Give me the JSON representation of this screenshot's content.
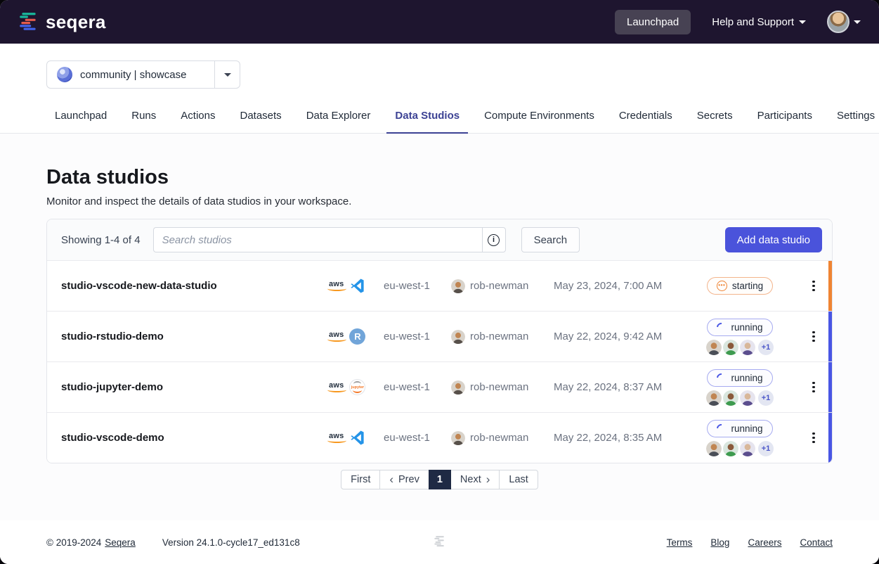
{
  "colors": {
    "accent": "#4a53db",
    "navbar_bg": "#1e152f",
    "status_starting": "#ef8433",
    "status_running": "#4956e4",
    "active_tab": "#3c4294",
    "active_page_bg": "#1f2a44"
  },
  "navbar": {
    "brand": "seqera",
    "launchpad_label": "Launchpad",
    "help_label": "Help and Support"
  },
  "workspace_selector": {
    "label": "community | showcase"
  },
  "tabs": [
    {
      "label": "Launchpad",
      "active": false
    },
    {
      "label": "Runs",
      "active": false
    },
    {
      "label": "Actions",
      "active": false
    },
    {
      "label": "Datasets",
      "active": false
    },
    {
      "label": "Data Explorer",
      "active": false
    },
    {
      "label": "Data Studios",
      "active": true
    },
    {
      "label": "Compute Environments",
      "active": false
    },
    {
      "label": "Credentials",
      "active": false
    },
    {
      "label": "Secrets",
      "active": false
    },
    {
      "label": "Participants",
      "active": false
    },
    {
      "label": "Settings",
      "active": false
    }
  ],
  "page": {
    "title": "Data studios",
    "subtitle": "Monitor and inspect the details of data studios in your workspace."
  },
  "toolbar": {
    "showing": "Showing 1-4 of 4",
    "search_placeholder": "Search studios",
    "search_button_label": "Search",
    "add_button_label": "Add data studio"
  },
  "table": {
    "rows": [
      {
        "name": "studio-vscode-new-data-studio",
        "app": "vscode",
        "region": "eu-west-1",
        "user": "rob-newman",
        "date": "May 23, 2024, 7:00 AM",
        "status": "starting",
        "members_extra": null
      },
      {
        "name": "studio-rstudio-demo",
        "app": "rstudio",
        "region": "eu-west-1",
        "user": "rob-newman",
        "date": "May 22, 2024, 9:42 AM",
        "status": "running",
        "members_extra": "+1"
      },
      {
        "name": "studio-jupyter-demo",
        "app": "jupyter",
        "region": "eu-west-1",
        "user": "rob-newman",
        "date": "May 22, 2024, 8:37 AM",
        "status": "running",
        "members_extra": "+1"
      },
      {
        "name": "studio-vscode-demo",
        "app": "vscode",
        "region": "eu-west-1",
        "user": "rob-newman",
        "date": "May 22, 2024, 8:35 AM",
        "status": "running",
        "members_extra": "+1"
      }
    ]
  },
  "pagination": {
    "first": "First",
    "prev": "Prev",
    "page": "1",
    "next": "Next",
    "last": "Last"
  },
  "footer": {
    "copyright_prefix": "© 2019-2024",
    "brand_link": "Seqera",
    "version": "Version 24.1.0-cycle17_ed131c8",
    "links": [
      "Terms",
      "Blog",
      "Careers",
      "Contact"
    ]
  }
}
